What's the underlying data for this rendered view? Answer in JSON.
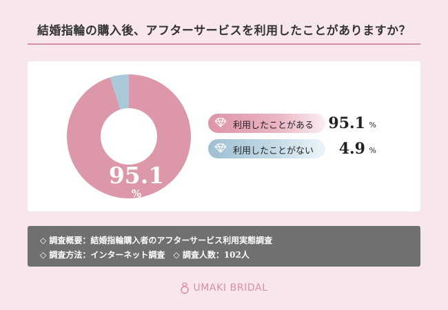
{
  "page_title": "結婚指輪の購入後、アフターサービスを利用したことがありますか？",
  "chart_data": {
    "type": "pie",
    "title": "結婚指輪の購入後、アフターサービスを利用したことがありますか？",
    "categories": [
      "利用したことがある",
      "利用したことがない"
    ],
    "values": [
      95.1,
      4.9
    ],
    "unit": "%",
    "colors": [
      "#dc97a8",
      "#a9c8d8"
    ],
    "center_value": "95.1",
    "center_unit": "%",
    "display_values": [
      "95.1",
      "4.9"
    ]
  },
  "icons": {
    "legend_marker": "diamond-icon",
    "logo": "ring-icon"
  },
  "survey_info": {
    "line1": "◇ 調査概要：結婚指輪購入者のアフターサービス利用実態調査",
    "line2": "◇ 調査方法：インターネット調査　◇ 調査人数：102人"
  },
  "brand": {
    "name": "UMAKI BRIDAL",
    "color": "#dc8ea3"
  }
}
